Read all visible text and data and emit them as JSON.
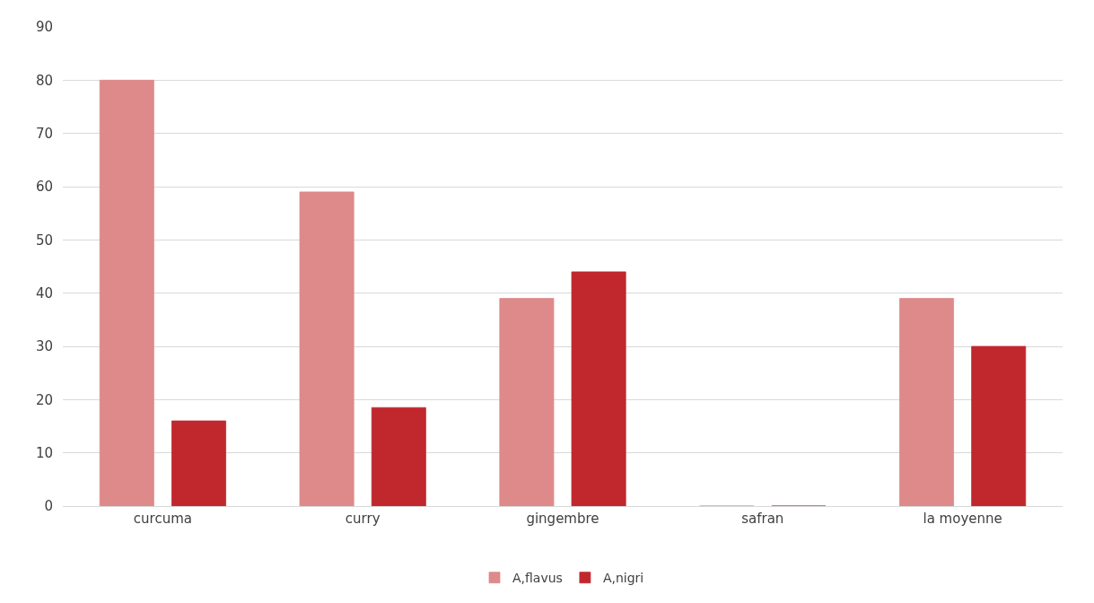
{
  "chart_data": {
    "type": "bar",
    "categories": [
      "curcuma",
      "curry",
      "gingembre",
      "safran",
      "la moyenne"
    ],
    "series": [
      {
        "name": "A,flavus",
        "color": "#de8a8a",
        "values": [
          80,
          59,
          39,
          0,
          39
        ]
      },
      {
        "name": "A,nigri",
        "color": "#c0282d",
        "values": [
          16,
          18.5,
          44,
          0,
          30
        ]
      }
    ],
    "ylim": [
      0,
      90
    ],
    "yticks": [
      0,
      10,
      20,
      30,
      40,
      50,
      60,
      70,
      80,
      90
    ],
    "grid": "y",
    "legend": "bottom"
  }
}
